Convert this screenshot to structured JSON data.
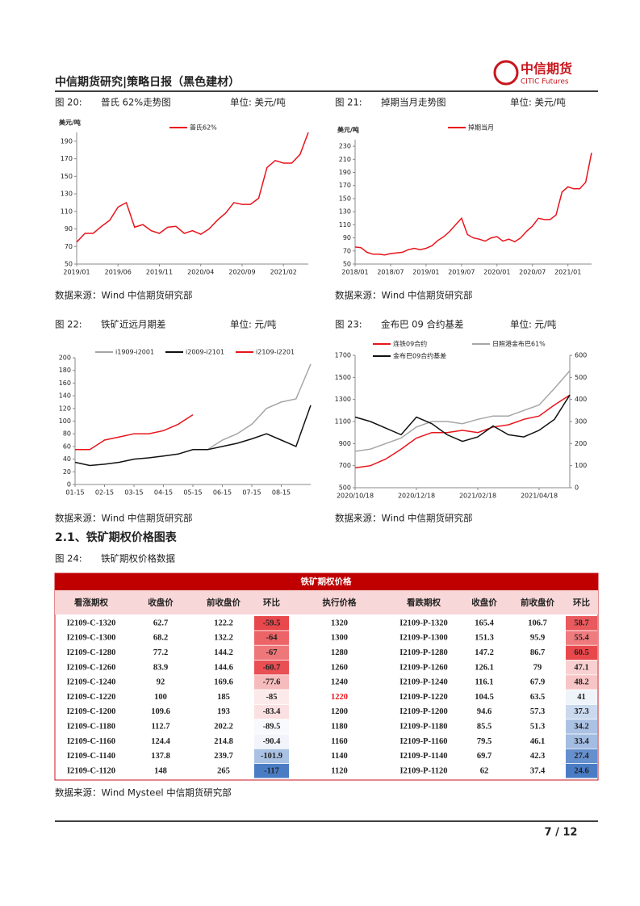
{
  "header": {
    "title": "中信期货研究|策略日报（黑色建材）",
    "logo": "中信期货",
    "logo_en": "CITIC Futures"
  },
  "chart_data": [
    {
      "type": "line",
      "caption_no": "图 20:",
      "caption": "普氏 62%走势图",
      "unit": "单位: 美元/吨",
      "source": "数据来源：Wind  中信期货研究部",
      "ylabel": "美元/吨",
      "categories": [
        "2019/01",
        null,
        null,
        null,
        null,
        "2019/06",
        null,
        null,
        null,
        null,
        "2019/11",
        null,
        null,
        null,
        null,
        "2020/04",
        null,
        null,
        null,
        null,
        "2020/09",
        null,
        null,
        null,
        null,
        "2021/02",
        null,
        null,
        null
      ],
      "series": [
        {
          "name": "普氏62%",
          "color": "#e8141c",
          "values": [
            75,
            85,
            85,
            93,
            100,
            115,
            120,
            92,
            95,
            88,
            85,
            92,
            93,
            85,
            88,
            84,
            90,
            100,
            108,
            120,
            118,
            118,
            125,
            160,
            168,
            165,
            165,
            175,
            200
          ]
        }
      ],
      "ylim": [
        50,
        200
      ],
      "yticks": [
        50,
        70,
        90,
        110,
        130,
        150,
        170,
        190
      ],
      "legend": "top"
    },
    {
      "type": "line",
      "caption_no": "图 21:",
      "caption": "掉期当月走势图",
      "unit": "单位: 美元/吨",
      "source": "数据来源：Wind  中信期货研究部",
      "ylabel": "美元/吨",
      "categories": [
        "2018/01",
        null,
        null,
        null,
        null,
        null,
        "2018/07",
        null,
        null,
        null,
        null,
        null,
        "2019/01",
        null,
        null,
        null,
        null,
        null,
        "2019/07",
        null,
        null,
        null,
        null,
        null,
        "2020/01",
        null,
        null,
        null,
        null,
        null,
        "2020/07",
        null,
        null,
        null,
        null,
        null,
        "2021/01",
        null,
        null,
        null,
        null
      ],
      "series": [
        {
          "name": "掉期当月",
          "color": "#e8141c",
          "values": [
            76,
            75,
            68,
            65,
            65,
            64,
            66,
            67,
            68,
            72,
            74,
            72,
            74,
            78,
            86,
            92,
            100,
            110,
            120,
            95,
            90,
            88,
            85,
            90,
            92,
            85,
            88,
            84,
            90,
            100,
            108,
            120,
            118,
            118,
            125,
            160,
            168,
            165,
            165,
            175,
            220
          ]
        }
      ],
      "ylim": [
        50,
        240
      ],
      "yticks": [
        50,
        70,
        90,
        110,
        130,
        150,
        170,
        190,
        210,
        230
      ],
      "legend": "top"
    },
    {
      "type": "line",
      "caption_no": "图 22:",
      "caption": "铁矿近远月期差",
      "unit": "单位: 元/吨",
      "source": "数据来源：Wind  中信期货研究部",
      "categories": [
        "01-15",
        null,
        "02-15",
        null,
        "03-15",
        null,
        "04-15",
        null,
        "05-15",
        null,
        "06-15",
        null,
        "07-15",
        null,
        "08-15",
        null,
        null
      ],
      "series": [
        {
          "name": "i1909-i2001",
          "color": "#a6a6a6",
          "values": [
            null,
            null,
            null,
            null,
            null,
            null,
            null,
            null,
            null,
            55,
            70,
            80,
            95,
            120,
            130,
            135,
            190
          ]
        },
        {
          "name": "i2009-i2101",
          "color": "#111111",
          "values": [
            35,
            30,
            32,
            35,
            40,
            42,
            45,
            48,
            55,
            55,
            60,
            65,
            72,
            80,
            70,
            60,
            125
          ]
        },
        {
          "name": "i2109-i2201",
          "color": "#e8141c",
          "values": [
            55,
            55,
            70,
            75,
            80,
            80,
            85,
            95,
            110,
            null,
            null,
            null,
            null,
            null,
            null,
            null,
            null
          ]
        }
      ],
      "ylim": [
        0,
        200
      ],
      "yticks": [
        0,
        20,
        40,
        60,
        80,
        100,
        120,
        140,
        160,
        180,
        200
      ],
      "legend": "top"
    },
    {
      "type": "line",
      "caption_no": "图 23:",
      "caption": "金布巴 09 合约基差",
      "unit": "单位: 元/吨",
      "source": "数据来源：Wind  中信期货研究部",
      "categories": [
        "2020/10/18",
        null,
        null,
        null,
        "2020/12/18",
        null,
        null,
        null,
        "2021/02/18",
        null,
        null,
        null,
        "2021/04/18",
        null,
        null
      ],
      "series": [
        {
          "name": "连铁09合约",
          "color": "#e8141c",
          "values": [
            680,
            700,
            760,
            850,
            950,
            1000,
            1000,
            1020,
            1000,
            1050,
            1070,
            1120,
            1150,
            1250,
            1340
          ]
        },
        {
          "name": "日照港金布巴61%",
          "color": "#a6a6a6",
          "values": [
            830,
            850,
            900,
            950,
            1050,
            1100,
            1100,
            1080,
            1120,
            1150,
            1150,
            1200,
            1250,
            1400,
            1560
          ]
        },
        {
          "name": "金布巴09合约基差",
          "color": "#111111",
          "axis": "y2",
          "values": [
            320,
            300,
            270,
            240,
            320,
            290,
            240,
            210,
            230,
            280,
            240,
            230,
            260,
            310,
            420
          ]
        }
      ],
      "ylim": [
        500,
        1700
      ],
      "yticks": [
        500,
        700,
        900,
        1100,
        1300,
        1500,
        1700
      ],
      "y2lim": [
        0,
        600
      ],
      "y2ticks": [
        0,
        100,
        200,
        300,
        400,
        500,
        600
      ],
      "legend": "top"
    }
  ],
  "section": "2.1、铁矿期权价格图表",
  "figure24": {
    "caption_no": "图 24:",
    "caption": "铁矿期权价格数据",
    "source": "数据来源：Wind Mysteel 中信期货研究部"
  },
  "table": {
    "title": "铁矿期权价格",
    "header": [
      "看涨期权",
      "收盘价",
      "前收盘价",
      "环比",
      "执行价格",
      "看跌期权",
      "收盘价",
      "前收盘价",
      "环比"
    ],
    "rows": [
      [
        "I2109-C-1320",
        "62.7",
        "122.2",
        "-59.5",
        "1320",
        "I2109-P-1320",
        "165.4",
        "106.7",
        "58.7"
      ],
      [
        "I2109-C-1300",
        "68.2",
        "132.2",
        "-64",
        "1300",
        "I2109-P-1300",
        "151.3",
        "95.9",
        "55.4"
      ],
      [
        "I2109-C-1280",
        "77.2",
        "144.2",
        "-67",
        "1280",
        "I2109-P-1280",
        "147.2",
        "86.7",
        "60.5"
      ],
      [
        "I2109-C-1260",
        "83.9",
        "144.6",
        "-60.7",
        "1260",
        "I2109-P-1260",
        "126.1",
        "79",
        "47.1"
      ],
      [
        "I2109-C-1240",
        "92",
        "169.6",
        "-77.6",
        "1240",
        "I2109-P-1240",
        "116.1",
        "67.9",
        "48.2"
      ],
      [
        "I2109-C-1220",
        "100",
        "185",
        "-85",
        "1220",
        "I2109-P-1220",
        "104.5",
        "63.5",
        "41"
      ],
      [
        "I2109-C-1200",
        "109.6",
        "193",
        "-83.4",
        "1200",
        "I2109-P-1200",
        "94.6",
        "57.3",
        "37.3"
      ],
      [
        "I2109-C-1180",
        "112.7",
        "202.2",
        "-89.5",
        "1180",
        "I2109-P-1180",
        "85.5",
        "51.3",
        "34.2"
      ],
      [
        "I2109-C-1160",
        "124.4",
        "214.8",
        "-90.4",
        "1160",
        "I2109-P-1160",
        "79.5",
        "46.1",
        "33.4"
      ],
      [
        "I2109-C-1140",
        "137.8",
        "239.7",
        "-101.9",
        "1140",
        "I2109-P-1140",
        "69.7",
        "42.3",
        "27.4"
      ],
      [
        "I2109-C-1120",
        "148",
        "265",
        "-117",
        "1120",
        "I2109-P-1120",
        "62",
        "37.4",
        "24.6"
      ]
    ],
    "heat_columns": [
      3,
      8
    ],
    "heat_colors": {
      "high": "#e8474b",
      "low": "#4a7cc4"
    },
    "highlight_row": 5,
    "highlight_column": 4,
    "highlight_color": "#e8141c"
  },
  "footer": {
    "page": "7 / 12"
  }
}
